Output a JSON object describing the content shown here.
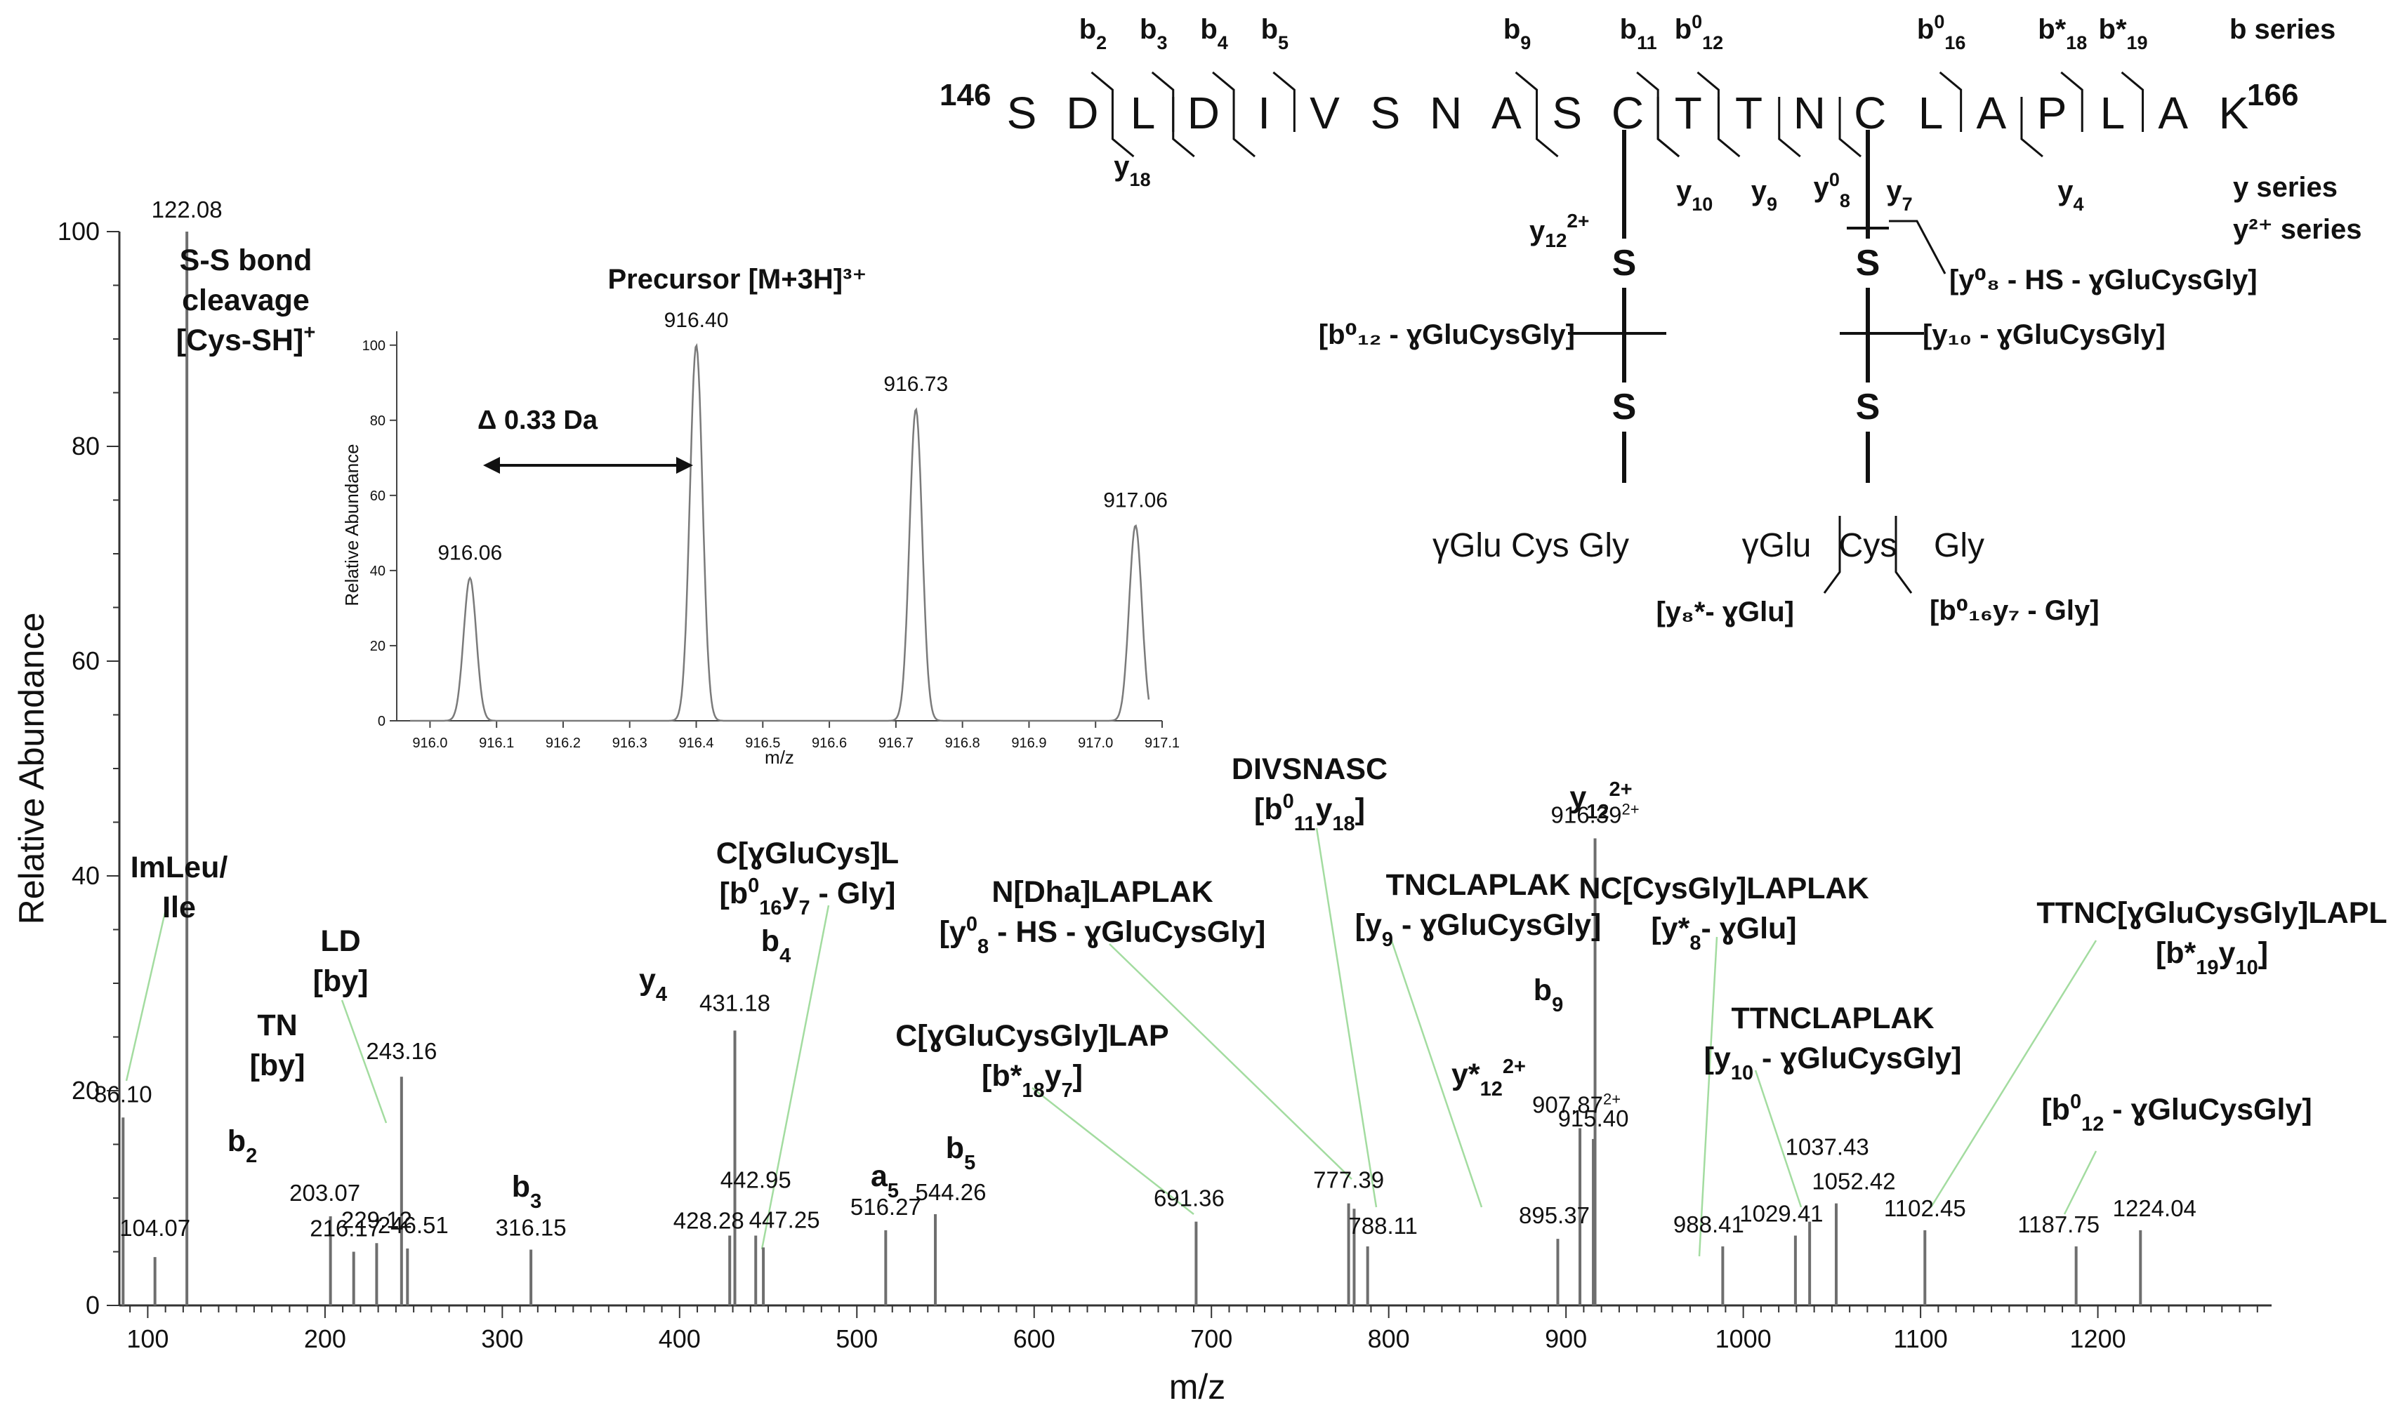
{
  "chart_data": {
    "type": "bar",
    "title": "",
    "xlabel": "m/z",
    "ylabel": "Relative Abundance",
    "xlim": [
      84,
      1298
    ],
    "ylim": [
      0,
      100
    ],
    "x_ticks": [
      "100",
      "200",
      "300",
      "400",
      "500",
      "600",
      "700",
      "800",
      "900",
      "1000",
      "1100",
      "1200"
    ],
    "y_ticks": [
      "0",
      "20",
      "40",
      "60",
      "80",
      "100"
    ],
    "peaks": [
      {
        "mz": 86.1,
        "y": 17.5
      },
      {
        "mz": 104.07,
        "y": 4.5
      },
      {
        "mz": 122.08,
        "y": 100
      },
      {
        "mz": 203.07,
        "y": 8.3
      },
      {
        "mz": 216.17,
        "y": 5.0
      },
      {
        "mz": 229.12,
        "y": 5.8
      },
      {
        "mz": 243.16,
        "y": 21.3
      },
      {
        "mz": 246.51,
        "y": 5.3
      },
      {
        "mz": 316.15,
        "y": 5.2
      },
      {
        "mz": 428.28,
        "y": 6.5
      },
      {
        "mz": 431.18,
        "y": 25.6
      },
      {
        "mz": 442.95,
        "y": 6.5
      },
      {
        "mz": 447.25,
        "y": 5.4
      },
      {
        "mz": 516.27,
        "y": 7.0
      },
      {
        "mz": 544.26,
        "y": 8.5
      },
      {
        "mz": 691.36,
        "y": 7.8
      },
      {
        "mz": 777.39,
        "y": 9.5
      },
      {
        "mz": 780.5,
        "y": 9.0
      },
      {
        "mz": 788.11,
        "y": 5.5
      },
      {
        "mz": 895.37,
        "y": 6.2
      },
      {
        "mz": 907.87,
        "y": 16.5
      },
      {
        "mz": 915.4,
        "y": 15.5
      },
      {
        "mz": 916.39,
        "y": 43.5
      },
      {
        "mz": 988.41,
        "y": 5.5
      },
      {
        "mz": 1029.41,
        "y": 6.5
      },
      {
        "mz": 1037.43,
        "y": 7.8
      },
      {
        "mz": 1052.42,
        "y": 9.5
      },
      {
        "mz": 1102.45,
        "y": 7.0
      },
      {
        "mz": 1187.75,
        "y": 5.5
      },
      {
        "mz": 1224.04,
        "y": 7.0
      }
    ],
    "peak_labels": [
      {
        "text": "122.08",
        "mz": 122.08,
        "y": 100
      },
      {
        "text": "86.10",
        "mz": 86.1,
        "y": 17.5
      },
      {
        "text": "104.07",
        "mz": 104.07,
        "y": 4.5
      },
      {
        "text": "203.07",
        "mz": 203.07,
        "y": 8.3
      },
      {
        "text": "216.17",
        "mz": 216.17,
        "y": 5.0
      },
      {
        "text": "229.12",
        "mz": 229.12,
        "y": 5.8
      },
      {
        "text": "243.16",
        "mz": 243.16,
        "y": 21.3
      },
      {
        "text": "246.51",
        "mz": 246.51,
        "y": 5.3
      },
      {
        "text": "316.15",
        "mz": 316.15,
        "y": 5.2
      },
      {
        "text": "428.28",
        "mz": 428.28,
        "y": 6.5
      },
      {
        "text": "431.18",
        "mz": 431.18,
        "y": 25.6
      },
      {
        "text": "442.95",
        "mz": 442.95,
        "y": 6.5
      },
      {
        "text": "447.25",
        "mz": 447.25,
        "y": 5.4
      },
      {
        "text": "516.27",
        "mz": 516.27,
        "y": 7.0
      },
      {
        "text": "544.26",
        "mz": 544.26,
        "y": 8.5
      },
      {
        "text": "691.36",
        "mz": 691.36,
        "y": 7.8
      },
      {
        "text": "777.39",
        "mz": 777.39,
        "y": 9.5
      },
      {
        "text": "788.11",
        "mz": 788.11,
        "y": 5.5
      },
      {
        "text": "895.37",
        "mz": 895.37,
        "y": 6.2
      },
      {
        "text": "907.87²⁺",
        "mz": 907.87,
        "y": 16.5
      },
      {
        "text": "915.40",
        "mz": 915.4,
        "y": 15.5
      },
      {
        "text": "916.39²⁺",
        "mz": 916.39,
        "y": 43.5
      },
      {
        "text": "988.41",
        "mz": 988.41,
        "y": 5.5
      },
      {
        "text": "1029.41",
        "mz": 1029.41,
        "y": 6.5
      },
      {
        "text": "1037.43",
        "mz": 1037.43,
        "y": 7.8
      },
      {
        "text": "1052.42",
        "mz": 1052.42,
        "y": 9.5
      },
      {
        "text": "1102.45",
        "mz": 1102.45,
        "y": 7.0
      },
      {
        "text": "1187.75",
        "mz": 1187.75,
        "y": 5.5
      },
      {
        "text": "1224.04",
        "mz": 1224.04,
        "y": 7.0
      }
    ],
    "annotations": [
      {
        "lines": [
          "S-S bond",
          "cleavage",
          "[Cys-SH]⁺"
        ]
      },
      {
        "lines": [
          "ImLeu/",
          "Ile"
        ]
      },
      {
        "lines": [
          "LD",
          "[by]"
        ]
      },
      {
        "lines": [
          "TN",
          "[by]"
        ]
      },
      {
        "lines": [
          "b₂"
        ]
      },
      {
        "lines": [
          "b₃"
        ]
      },
      {
        "lines": [
          "y₄"
        ]
      },
      {
        "lines": [
          "b₄"
        ]
      },
      {
        "lines": [
          "a₅"
        ]
      },
      {
        "lines": [
          "b₅"
        ]
      },
      {
        "lines": [
          "C[ɣGluCys]L",
          "[b⁰₁₆y₇ - Gly]"
        ]
      },
      {
        "lines": [
          "N[Dha]LAPLAK",
          "[y⁰₈ - HS - ɣGluCysGly]"
        ]
      },
      {
        "lines": [
          "C[ɣGluCysGly]LAP",
          "[b*₁₈y₇]"
        ]
      },
      {
        "lines": [
          "DIVSNASC",
          "[b⁰₁₁y₁₈]"
        ]
      },
      {
        "lines": [
          "TNCLAPLAK",
          "[y₉ - ɣGluCysGly]"
        ]
      },
      {
        "lines": [
          "y₁₂²⁺"
        ]
      },
      {
        "lines": [
          "NC[CysGly]LAPLAK",
          "[y*₈- ɣGlu]"
        ]
      },
      {
        "lines": [
          "b₉"
        ]
      },
      {
        "lines": [
          "y*₁₂²⁺"
        ]
      },
      {
        "lines": [
          "TTNCLAPLAK",
          "[y₁₀ - ɣGluCysGly]"
        ]
      },
      {
        "lines": [
          "TTNC[ɣGluCysGly]LAPL",
          "[b*₁₉y₁₀]"
        ]
      },
      {
        "lines": [
          "[b⁰₁₂ - ɣGluCysGly]"
        ]
      }
    ],
    "inset": {
      "type": "line",
      "title": "Precursor [M+3H]³⁺",
      "xlabel": "m/z",
      "ylabel": "Relative Abundance",
      "xlim": [
        915.95,
        917.1
      ],
      "ylim": [
        0,
        105
      ],
      "x_ticks": [
        "916.0",
        "916.1",
        "916.2",
        "916.3",
        "916.4",
        "916.5",
        "916.6",
        "916.7",
        "916.8",
        "916.9",
        "917.0",
        "917.1"
      ],
      "y_ticks": [
        "0",
        "20",
        "40",
        "60",
        "80",
        "100"
      ],
      "peaks": [
        {
          "mz": 916.06,
          "y": 38,
          "label": "916.06"
        },
        {
          "mz": 916.4,
          "y": 100,
          "label": "916.40"
        },
        {
          "mz": 916.73,
          "y": 83,
          "label": "916.73"
        },
        {
          "mz": 917.06,
          "y": 52,
          "label": "917.06"
        }
      ],
      "delta_label": "Δ 0.33 Da"
    },
    "sequence": {
      "start": "146",
      "end": "166",
      "residues": [
        "S",
        "D",
        "L",
        "D",
        "I",
        "V",
        "S",
        "N",
        "A",
        "S",
        "C",
        "T",
        "T",
        "N",
        "C",
        "L",
        "A",
        "P",
        "L",
        "A",
        "K"
      ],
      "b_labels": [
        "b₂",
        "b₃",
        "b₄",
        "b₅",
        "b₉",
        "b₁₁",
        "b⁰₁₂",
        "b⁰₁₆",
        "b*₁₈",
        "b*₁₉"
      ],
      "y_labels": [
        "y₁₈",
        "y₁₀",
        "y₉",
        "y⁰₈",
        "y₇",
        "y₄"
      ],
      "series_legend": [
        "b series",
        "y series",
        "y²⁺ series"
      ],
      "y12_label": "y₁₂²⁺",
      "sulfur": "S",
      "branch_left": "γGlu Cys Gly",
      "branch_right_glu": "γGlu",
      "branch_right_cys": "Cys",
      "branch_right_gly": "Gly",
      "frag_labels": [
        "[b⁰₁₂ - ɣGluCysGly]",
        "[y₁₀ - ɣGluCysGly]",
        "[y⁰₈ - HS - ɣGluCysGly]",
        "[y₈*- ɣGlu]",
        "[b⁰₁₆y₇ - Gly]"
      ]
    }
  }
}
